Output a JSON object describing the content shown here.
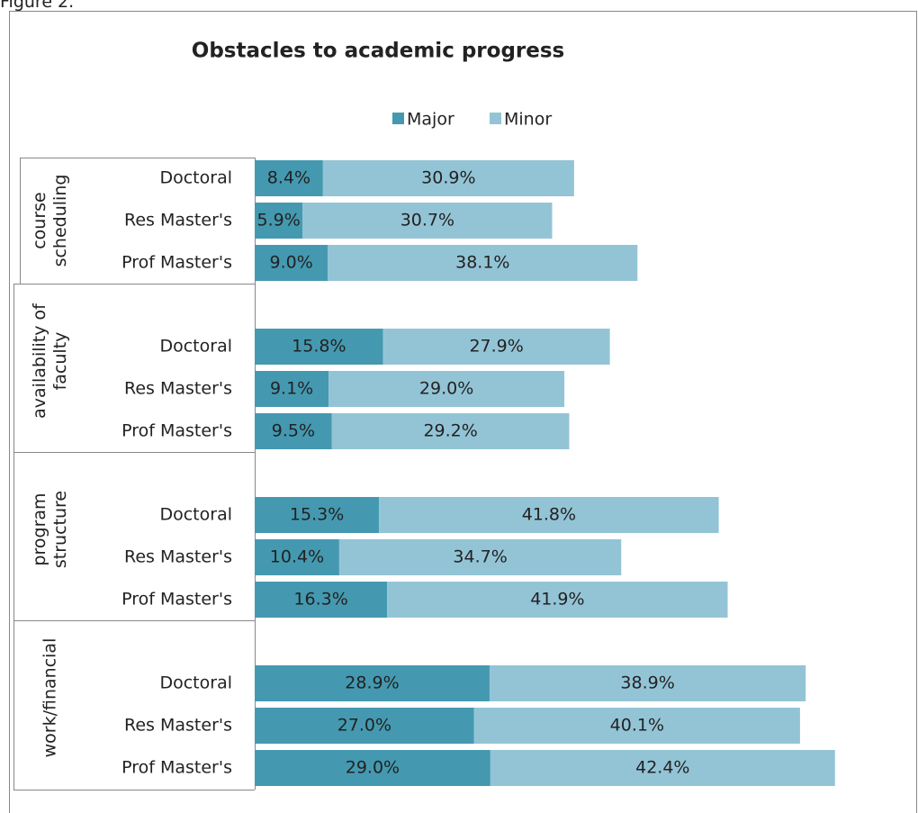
{
  "figure_label": "Figure 2.",
  "chart_data": {
    "type": "bar",
    "orientation": "horizontal",
    "stacked": true,
    "title": "Obstacles to academic progress",
    "groups": [
      "course scheduling",
      "availability of faculty",
      "program structure",
      "work/financial"
    ],
    "categories": [
      "Doctoral",
      "Res Master's",
      "Prof Master's",
      "Doctoral",
      "Res Master's",
      "Prof Master's",
      "Doctoral",
      "Res Master's",
      "Prof Master's",
      "Doctoral",
      "Res Master's",
      "Prof Master's"
    ],
    "series": [
      {
        "name": "Major",
        "color": "#4499b0",
        "values": [
          8.4,
          5.9,
          9.0,
          15.8,
          9.1,
          9.5,
          15.3,
          10.4,
          16.3,
          28.9,
          27.0,
          29.0
        ],
        "value_labels": [
          "8.4%",
          "5.9%",
          "9.0%",
          "15.8%",
          "9.1%",
          "9.5%",
          "15.3%",
          "10.4%",
          "16.3%",
          "28.9%",
          "27.0%",
          "29.0%"
        ]
      },
      {
        "name": "Minor",
        "color": "#93c4d6",
        "values": [
          30.9,
          30.7,
          38.1,
          27.9,
          29.0,
          29.2,
          41.8,
          34.7,
          41.9,
          38.9,
          40.1,
          42.4
        ],
        "value_labels": [
          "30.9%",
          "30.7%",
          "38.1%",
          "27.9%",
          "29.0%",
          "29.2%",
          "41.8%",
          "34.7%",
          "41.9%",
          "38.9%",
          "40.1%",
          "42.4%"
        ]
      }
    ],
    "legend": "top"
  }
}
